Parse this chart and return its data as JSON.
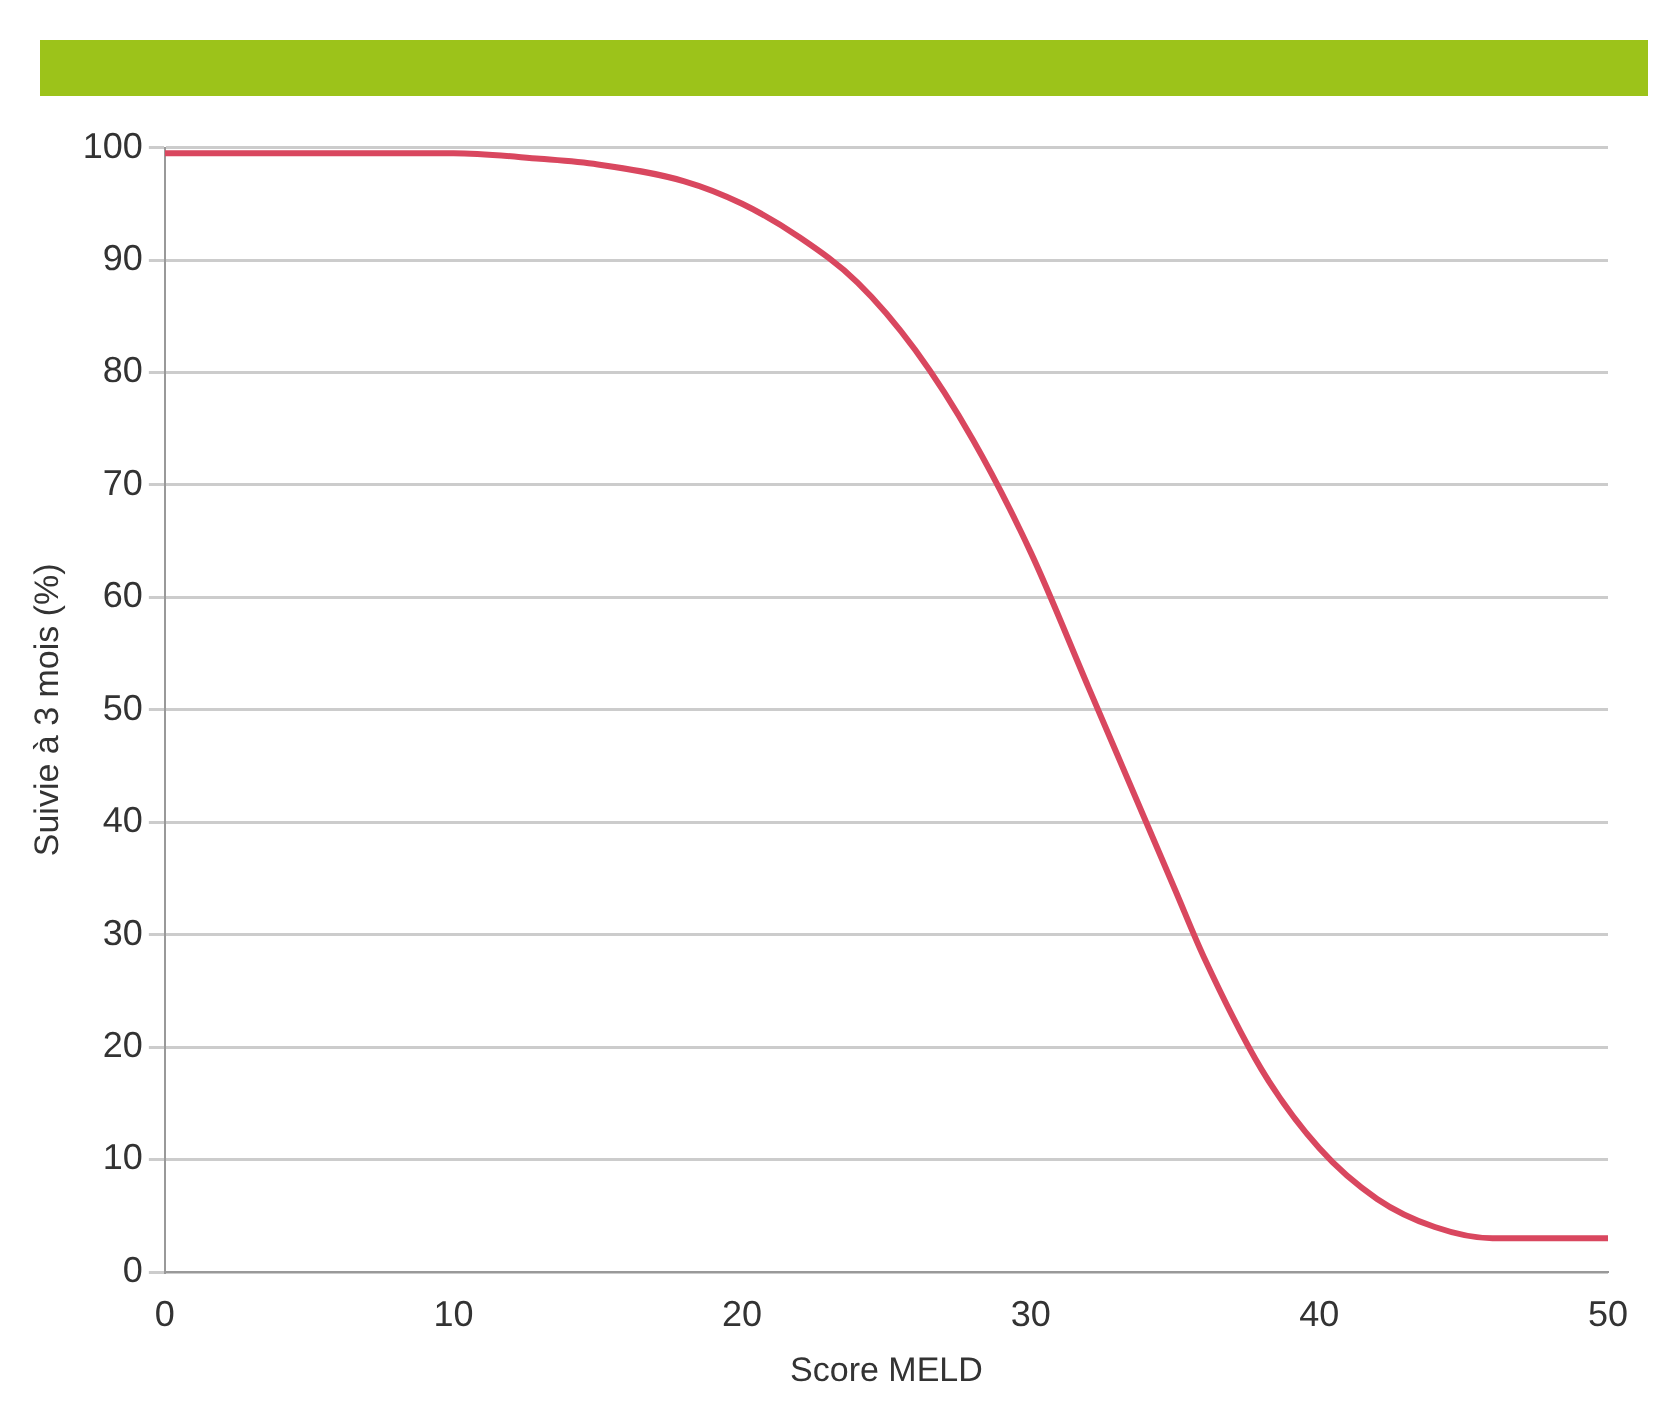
{
  "chart_data": {
    "type": "line",
    "xlabel": "Score MELD",
    "ylabel": "Suivie à 3 mois (%)",
    "x": [
      0,
      5,
      10,
      13,
      15,
      18,
      20,
      22,
      24,
      26,
      28,
      30,
      32,
      34,
      35,
      36,
      38,
      40,
      42,
      44,
      46,
      48,
      50
    ],
    "series": [
      {
        "color": "#d9475f",
        "values": [
          99.5,
          99.5,
          99.5,
          99,
          98.5,
          97,
          95,
          92,
          88,
          82,
          74,
          64,
          52,
          40,
          34,
          28,
          18,
          11,
          6.5,
          4,
          3,
          3,
          3
        ]
      }
    ],
    "xlim": [
      0,
      50
    ],
    "xticks": [
      0,
      10,
      20,
      30,
      40,
      50
    ],
    "ylim": [
      0,
      100
    ],
    "yticks": [
      0,
      10,
      20,
      30,
      40,
      50,
      60,
      70,
      80,
      90,
      100
    ],
    "grid": "y",
    "legend": false,
    "marker": "none",
    "line_style": "solid"
  }
}
